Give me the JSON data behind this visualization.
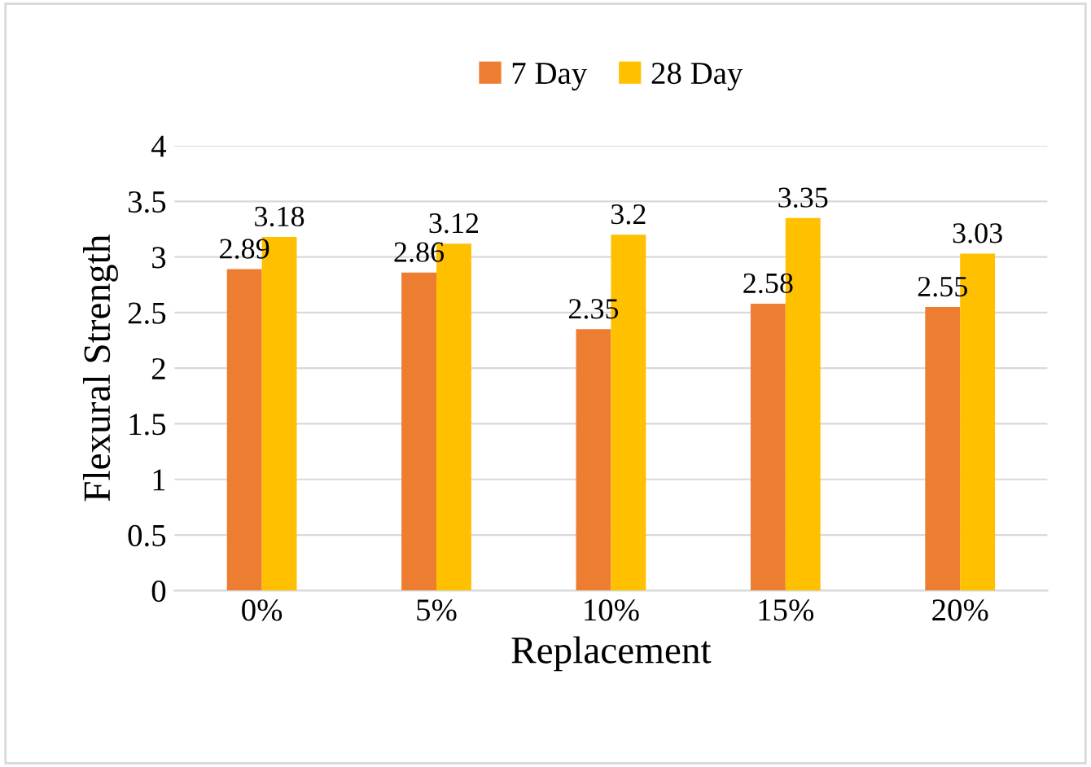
{
  "chart_data": {
    "type": "bar",
    "xlabel": "Replacement",
    "ylabel": "Flexural Strength",
    "categories": [
      "0%",
      "5%",
      "10%",
      "15%",
      "20%"
    ],
    "series": [
      {
        "name": "7 Day",
        "color": "#ed7d31",
        "values": [
          2.89,
          2.86,
          2.35,
          2.58,
          2.55
        ]
      },
      {
        "name": "28 Day",
        "color": "#ffc000",
        "values": [
          3.18,
          3.12,
          3.2,
          3.35,
          3.03
        ]
      }
    ],
    "ylim": [
      0,
      4
    ],
    "yticks": [
      0,
      0.5,
      1,
      1.5,
      2,
      2.5,
      3,
      3.5,
      4
    ],
    "grid": "y",
    "legend": "top",
    "data_labels": true
  }
}
